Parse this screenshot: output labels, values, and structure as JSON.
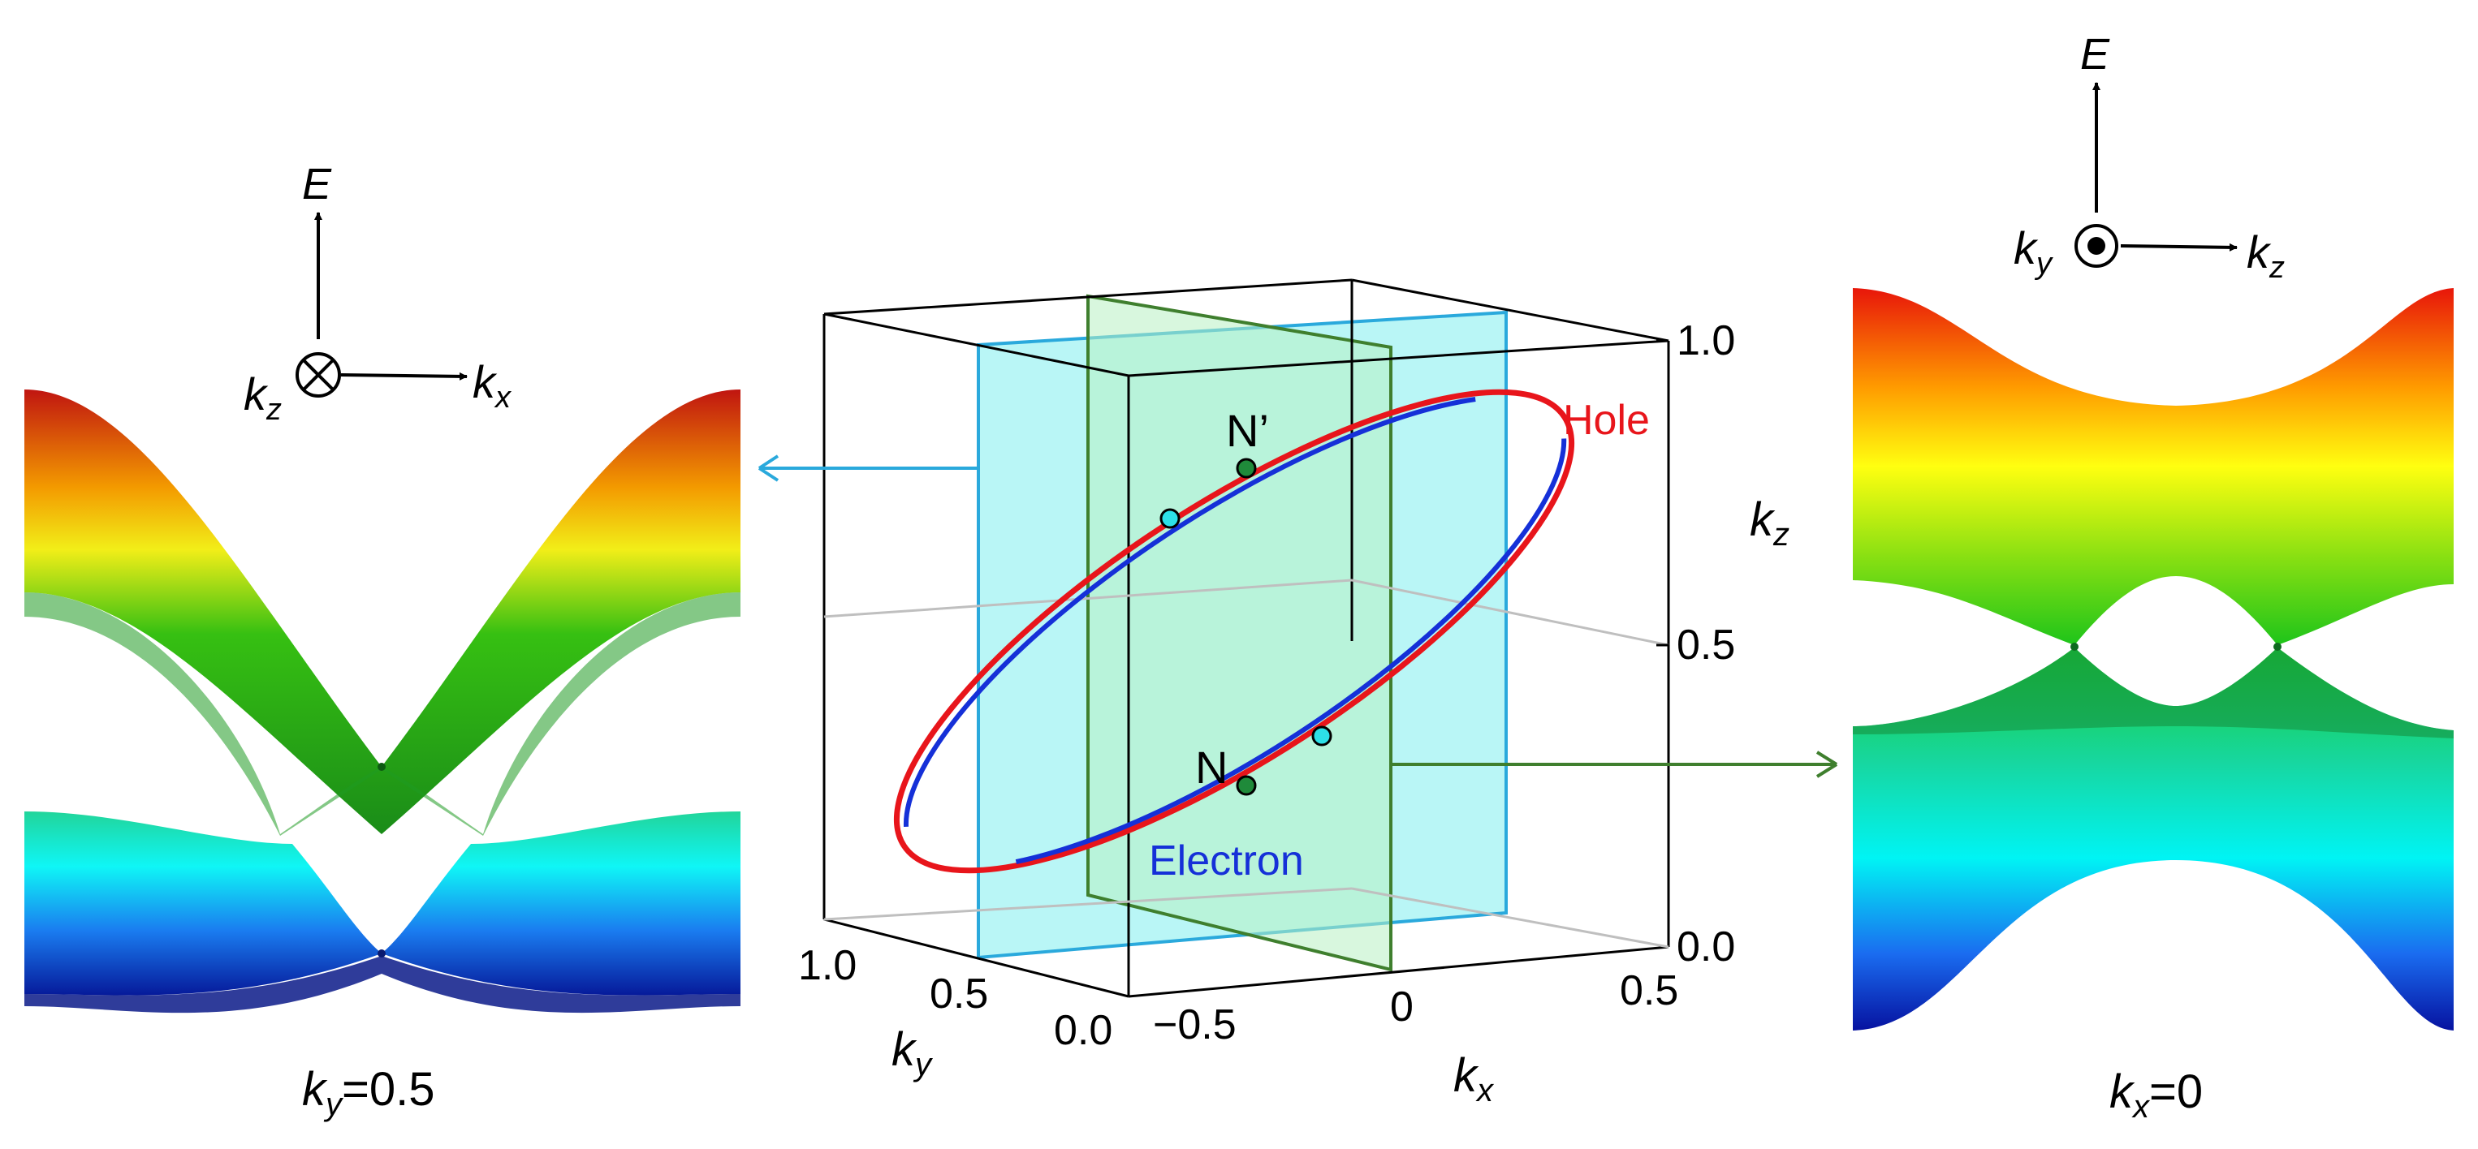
{
  "left_panel": {
    "axis_e": "E",
    "axis_kz": "k",
    "axis_kz_sub": "z",
    "axis_kx": "k",
    "axis_kx_sub": "x",
    "caption_var": "k",
    "caption_sub": "y",
    "caption_value": "=0.5"
  },
  "right_panel": {
    "axis_e": "E",
    "axis_ky": "k",
    "axis_ky_sub": "y",
    "axis_kz": "k",
    "axis_kz_sub": "z",
    "caption_var": "k",
    "caption_sub": "x",
    "caption_value": "=0"
  },
  "center_box": {
    "z_ticks": [
      "1.0",
      "0.5",
      "0.0"
    ],
    "y_ticks": [
      "1.0",
      "0.5",
      "0.0"
    ],
    "x_ticks": [
      "−0.5",
      "0",
      "0.5"
    ],
    "z_label": "k",
    "z_label_sub": "z",
    "y_label": "k",
    "y_label_sub": "y",
    "x_label": "k",
    "x_label_sub": "x",
    "point_n": "N",
    "point_n_prime": "N’",
    "hole_label": "Hole",
    "electron_label": "Electron"
  },
  "colors": {
    "hole": "#e8151b",
    "electron": "#1530d8",
    "cyan_plane": "#2aa9dc",
    "green_plane": "#3f7f2e",
    "node_point": "#1f8a3a",
    "weyl_point": "#2de0e8"
  }
}
